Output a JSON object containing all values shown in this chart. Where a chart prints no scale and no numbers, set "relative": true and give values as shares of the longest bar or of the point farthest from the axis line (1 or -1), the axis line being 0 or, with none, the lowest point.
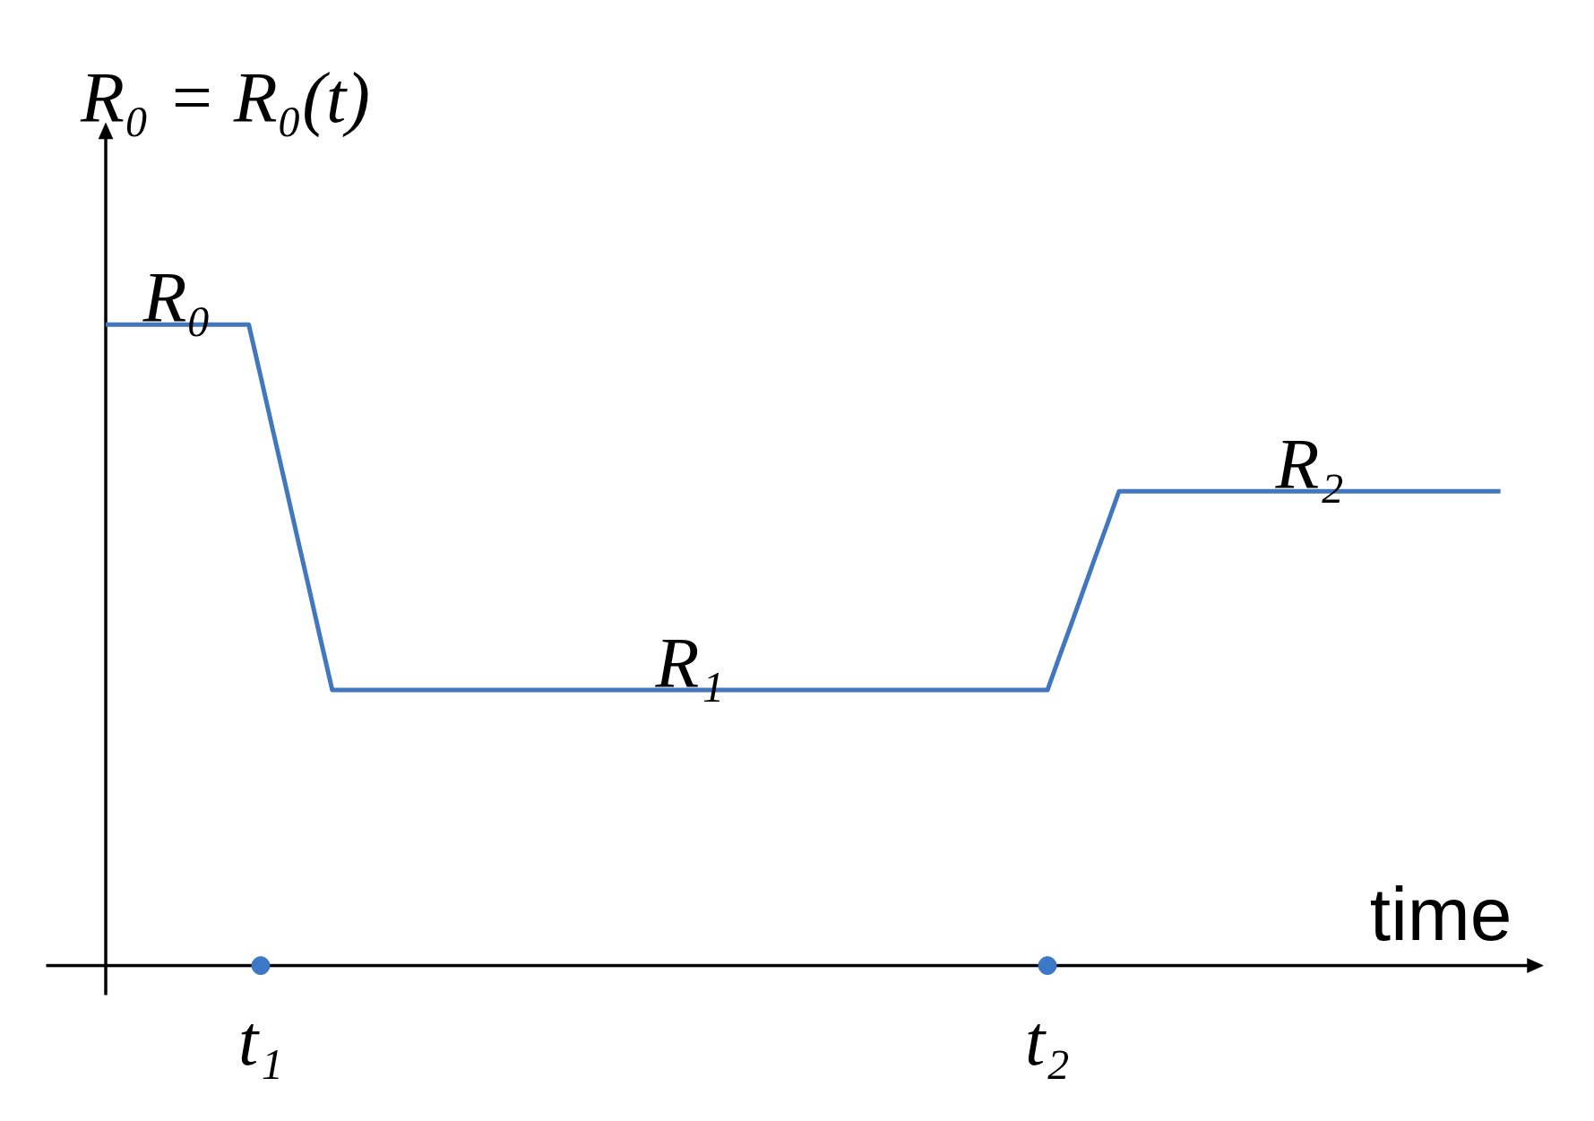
{
  "chart_data": {
    "type": "line",
    "ylabel": "R₀ = R₀(t)",
    "xlabel": "time",
    "relative": true,
    "categories": [
      null,
      null,
      null,
      null,
      null,
      null,
      null,
      null,
      null,
      null,
      null,
      null,
      null,
      "t₁",
      null,
      null,
      null,
      null,
      null,
      null,
      null,
      null,
      null,
      null,
      null,
      null,
      null,
      null,
      null,
      null,
      null,
      null,
      null,
      null,
      null,
      null,
      null,
      null,
      null,
      null,
      null,
      null,
      null,
      null,
      null,
      null,
      null,
      null,
      null,
      null,
      null,
      null,
      null,
      null,
      null,
      null,
      null,
      null,
      null,
      null,
      null,
      null,
      null,
      null,
      null,
      null,
      null,
      null,
      null,
      null,
      null,
      null,
      null,
      null,
      null,
      null,
      null,
      null,
      null,
      "t₂",
      null,
      null,
      null,
      null,
      null,
      null,
      null,
      null,
      null,
      null,
      null,
      null,
      null,
      null,
      null,
      null,
      null,
      null,
      null,
      null,
      null,
      null,
      null,
      null,
      null,
      null,
      null,
      null,
      null,
      null,
      null,
      null,
      null,
      null,
      null,
      null,
      null,
      null
    ],
    "series": [
      {
        "color": "#4377bd",
        "values": [
          1,
          1,
          1,
          1,
          1,
          1,
          1,
          1,
          1,
          1,
          1,
          1,
          1,
          0.919,
          0.837,
          0.756,
          0.674,
          0.593,
          0.511,
          0.43,
          0.43,
          0.43,
          0.43,
          0.43,
          0.43,
          0.43,
          0.43,
          0.43,
          0.43,
          0.43,
          0.43,
          0.43,
          0.43,
          0.43,
          0.43,
          0.43,
          0.43,
          0.43,
          0.43,
          0.43,
          0.43,
          0.43,
          0.43,
          0.43,
          0.43,
          0.43,
          0.43,
          0.43,
          0.43,
          0.43,
          0.43,
          0.43,
          0.43,
          0.43,
          0.43,
          0.43,
          0.43,
          0.43,
          0.43,
          0.43,
          0.43,
          0.43,
          0.43,
          0.43,
          0.43,
          0.43,
          0.43,
          0.43,
          0.43,
          0.43,
          0.43,
          0.43,
          0.43,
          0.43,
          0.43,
          0.43,
          0.43,
          0.43,
          0.43,
          0.43,
          0.482,
          0.533,
          0.585,
          0.637,
          0.688,
          0.74,
          0.74,
          0.74,
          0.74,
          0.74,
          0.74,
          0.74,
          0.74,
          0.74,
          0.74,
          0.74,
          0.74,
          0.74,
          0.74,
          0.74,
          0.74,
          0.74,
          0.74,
          0.74,
          0.74,
          0.74,
          0.74,
          0.74,
          0.74,
          0.74,
          0.74,
          0.74,
          0.74,
          0.74,
          0.74,
          0.74,
          0.74,
          0.74
        ]
      },
      {
        "type": "scatter",
        "color": "#3d78c6",
        "marker": "circle",
        "x": [
          "t₁",
          "t₂"
        ],
        "values": [
          0,
          0
        ]
      }
    ],
    "annotations": [
      {
        "text": "R₀",
        "y": 1
      },
      {
        "text": "R₁",
        "y": 0.43
      },
      {
        "text": "R₂",
        "y": 0.74
      }
    ]
  }
}
